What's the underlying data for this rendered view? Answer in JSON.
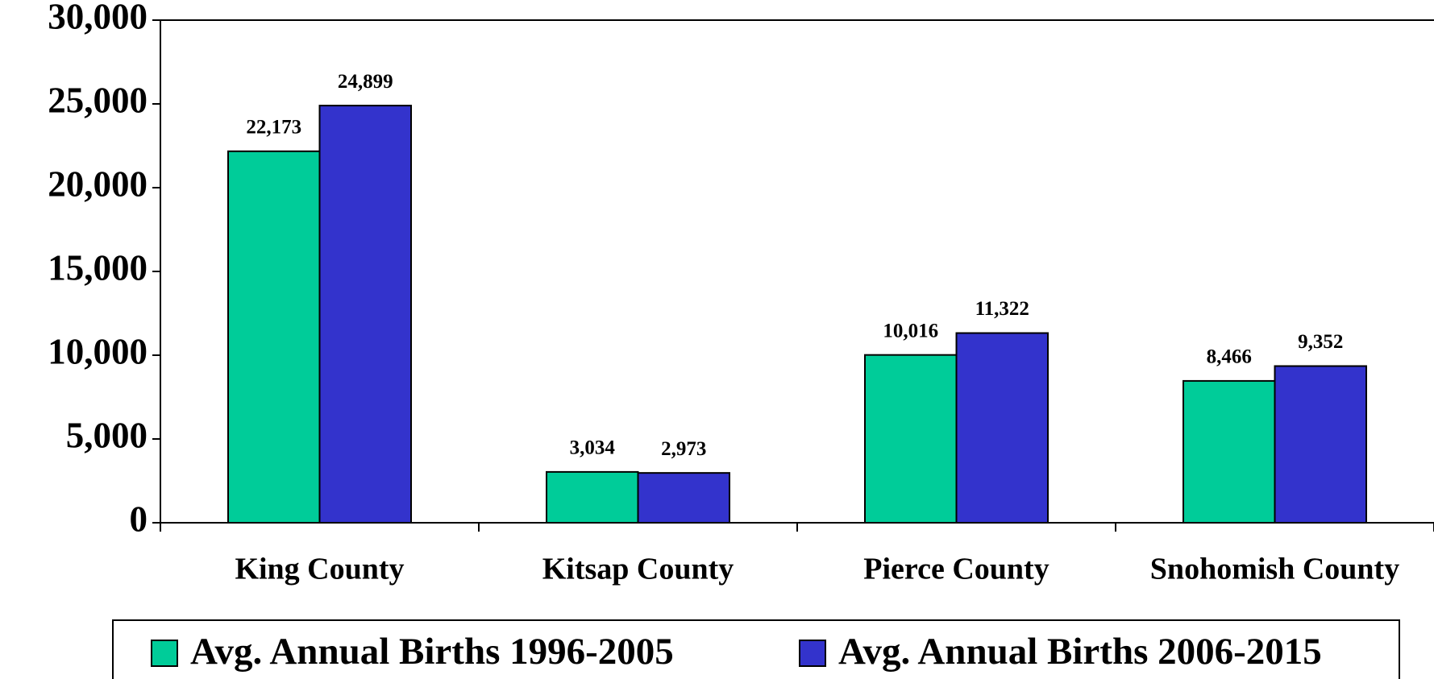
{
  "chart_data": {
    "type": "bar",
    "categories": [
      "King County",
      "Kitsap County",
      "Pierce County",
      "Snohomish County"
    ],
    "series": [
      {
        "name": "Avg. Annual Births 1996-2005",
        "color": "#00cc99",
        "values": [
          22173,
          3034,
          10016,
          8466
        ],
        "value_labels": [
          "22,173",
          "3,034",
          "10,016",
          "8,466"
        ]
      },
      {
        "name": "Avg. Annual Births 2006-2015",
        "color": "#3333cc",
        "values": [
          24899,
          2973,
          11322,
          9352
        ],
        "value_labels": [
          "24,899",
          "2,973",
          "11,322",
          "9,352"
        ]
      }
    ],
    "ylim": [
      0,
      30000
    ],
    "yticks": [
      0,
      {
        "value": 5000,
        "label": "5,000"
      },
      {
        "value": 10000,
        "label": "10,000"
      },
      {
        "value": 15000,
        "label": "15,000"
      },
      {
        "value": 20000,
        "label": "20,000"
      },
      {
        "value": 25000,
        "label": "25,000"
      },
      {
        "value": 30000,
        "label": "30,000"
      }
    ],
    "legend": "bottom"
  }
}
